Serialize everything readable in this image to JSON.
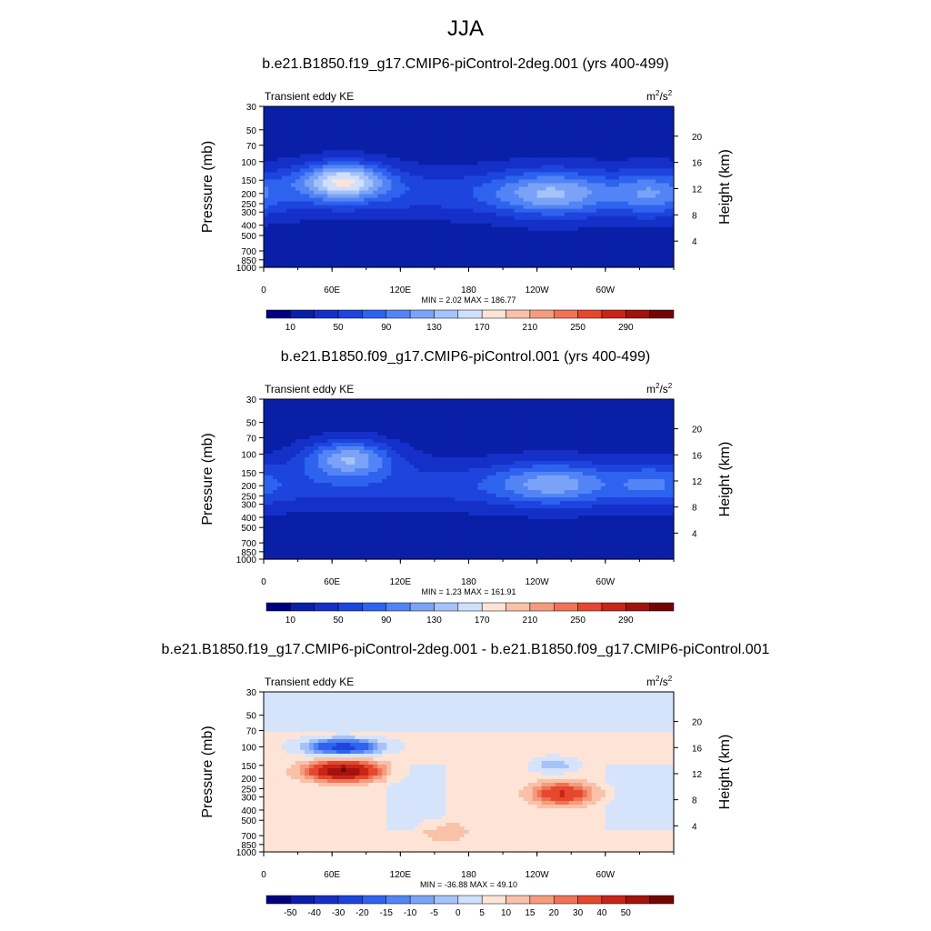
{
  "main_title": "JJA",
  "colors": {
    "abs_scale": [
      "#000080",
      "#0a1fa8",
      "#1530c8",
      "#1e44de",
      "#2e63ef",
      "#5384f5",
      "#7aa3f7",
      "#a5c3f9",
      "#cfe0fb",
      "#fde4d6",
      "#f9c1a8",
      "#f59c7f",
      "#ef7354",
      "#e5482f",
      "#c92418",
      "#a3130e",
      "#740505"
    ],
    "diff_scale": [
      "#000080",
      "#0a1fa8",
      "#1530c8",
      "#1e44de",
      "#2e63ef",
      "#5384f5",
      "#7aa3f7",
      "#a5c3f9",
      "#cfe0fb",
      "#fde4d6",
      "#f9c1a8",
      "#f59c7f",
      "#ef7354",
      "#e5482f",
      "#c92418",
      "#a3130e",
      "#740505"
    ],
    "diff_neg": "#d6e4fb",
    "diff_pos": "#fde4d6",
    "terrain": "#000000"
  },
  "chart_data": [
    {
      "type": "heatmap",
      "title": "b.e21.B1850.f19_g17.CMIP6-piControl-2deg.001 (yrs 400-499)",
      "field_label": "Transient eddy KE",
      "units": "m²/s²",
      "units_base": "m",
      "units_exp": "2",
      "units_slash": "/s",
      "ylabel": "Pressure (mb)",
      "y2label": "Height (km)",
      "y_ticks": [
        30,
        50,
        70,
        100,
        150,
        200,
        250,
        300,
        400,
        500,
        700,
        850,
        1000
      ],
      "y2_ticks": [
        4,
        8,
        12,
        16,
        20
      ],
      "x_ticks": [
        "0",
        "60E",
        "120E",
        "180",
        "120W",
        "60W"
      ],
      "x_tick_lons": [
        0,
        60,
        120,
        180,
        240,
        300
      ],
      "ylim": [
        1000,
        30
      ],
      "xlim": [
        0,
        360
      ],
      "stats": "MIN =   2.02  MAX = 186.77",
      "colorbar_labels": [
        "10",
        "50",
        "90",
        "130",
        "170",
        "210",
        "250",
        "290"
      ],
      "features": [
        {
          "lon": 70,
          "p": 150,
          "peak": 186.77,
          "lon_w": 38,
          "logp_w": 0.17
        },
        {
          "lon": 253,
          "p": 200,
          "peak": 135,
          "lon_w": 50,
          "logp_w": 0.22
        },
        {
          "lon": 340,
          "p": 200,
          "peak": 110,
          "lon_w": 30,
          "logp_w": 0.22
        }
      ]
    },
    {
      "type": "heatmap",
      "title": "b.e21.B1850.f09_g17.CMIP6-piControl.001 (yrs 400-499)",
      "field_label": "Transient eddy KE",
      "units": "m²/s²",
      "units_base": "m",
      "units_exp": "2",
      "units_slash": "/s",
      "ylabel": "Pressure (mb)",
      "y2label": "Height (km)",
      "y_ticks": [
        30,
        50,
        70,
        100,
        150,
        200,
        250,
        300,
        400,
        500,
        700,
        850,
        1000
      ],
      "y2_ticks": [
        4,
        8,
        12,
        16,
        20
      ],
      "x_ticks": [
        "0",
        "60E",
        "120E",
        "180",
        "120W",
        "60W"
      ],
      "x_tick_lons": [
        0,
        60,
        120,
        180,
        240,
        300
      ],
      "ylim": [
        1000,
        30
      ],
      "xlim": [
        0,
        360
      ],
      "stats": "MIN =   1.23  MAX = 161.91",
      "colorbar_labels": [
        "10",
        "50",
        "90",
        "130",
        "170",
        "210",
        "250",
        "290"
      ],
      "features": [
        {
          "lon": 75,
          "p": 110,
          "peak": 161.91,
          "lon_w": 38,
          "logp_w": 0.17
        },
        {
          "lon": 253,
          "p": 190,
          "peak": 125,
          "lon_w": 48,
          "logp_w": 0.2
        },
        {
          "lon": 340,
          "p": 190,
          "peak": 95,
          "lon_w": 30,
          "logp_w": 0.2
        }
      ]
    },
    {
      "type": "heatmap",
      "title": "b.e21.B1850.f19_g17.CMIP6-piControl-2deg.001 - b.e21.B1850.f09_g17.CMIP6-piControl.001",
      "field_label": "Transient eddy KE",
      "units": "m²/s²",
      "units_base": "m",
      "units_exp": "2",
      "units_slash": "/s",
      "ylabel": "Pressure (mb)",
      "y2label": "Height (km)",
      "y_ticks": [
        30,
        50,
        70,
        100,
        150,
        200,
        250,
        300,
        400,
        500,
        700,
        850,
        1000
      ],
      "y2_ticks": [
        4,
        8,
        12,
        16,
        20
      ],
      "x_ticks": [
        "0",
        "60E",
        "120E",
        "180",
        "120W",
        "60W"
      ],
      "x_tick_lons": [
        0,
        60,
        120,
        180,
        240,
        300
      ],
      "ylim": [
        1000,
        30
      ],
      "xlim": [
        0,
        360
      ],
      "stats": "MIN = -36.88  MAX =  49.10",
      "colorbar_labels": [
        "-50",
        "-40",
        "-30",
        "-20",
        "-15",
        "-10",
        "-5",
        "0",
        "5",
        "10",
        "15",
        "20",
        "30",
        "40",
        "50"
      ],
      "features": [
        {
          "lon": 70,
          "p": 170,
          "peak": 49.1,
          "lon_w": 30,
          "logp_w": 0.09
        },
        {
          "lon": 70,
          "p": 100,
          "peak": -36.88,
          "lon_w": 30,
          "logp_w": 0.07
        },
        {
          "lon": 262,
          "p": 280,
          "peak": 30,
          "lon_w": 25,
          "logp_w": 0.1
        },
        {
          "lon": 255,
          "p": 150,
          "peak": -10,
          "lon_w": 18,
          "logp_w": 0.07
        },
        {
          "lon": 160,
          "p": 650,
          "peak": 8,
          "lon_w": 20,
          "logp_w": 0.1
        }
      ]
    }
  ]
}
